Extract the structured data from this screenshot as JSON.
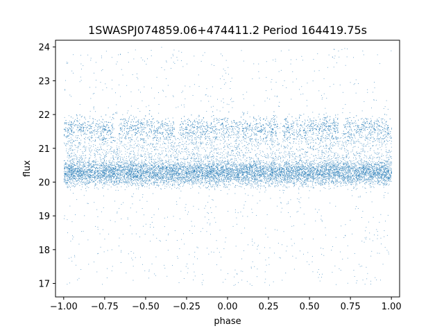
{
  "chart_data": {
    "type": "scatter",
    "title": "1SWASPJ074859.06+474411.2 Period 164419.75s",
    "xlabel": "phase",
    "ylabel": "flux",
    "xlim": [
      -1.05,
      1.05
    ],
    "ylim": [
      16.6,
      24.2
    ],
    "xticks": [
      -1.0,
      -0.75,
      -0.5,
      -0.25,
      0.0,
      0.25,
      0.5,
      0.75,
      1.0
    ],
    "xtick_labels": [
      "−1.00",
      "−0.75",
      "−0.50",
      "−0.25",
      "0.00",
      "0.25",
      "0.50",
      "0.75",
      "1.00"
    ],
    "yticks": [
      17,
      18,
      19,
      20,
      21,
      22,
      23,
      24
    ],
    "ytick_labels": [
      "17",
      "18",
      "19",
      "20",
      "21",
      "22",
      "23",
      "24"
    ],
    "grid": false,
    "series": [
      {
        "color": "#1f77b4",
        "x_range": [
          -1.0,
          1.0
        ],
        "main_band_center": 20.3,
        "main_band_halfwidth": 0.35,
        "upper_band_center": 21.6,
        "upper_band_halfwidth": 0.3,
        "outlier_range": [
          16.9,
          24.0
        ]
      }
    ]
  }
}
